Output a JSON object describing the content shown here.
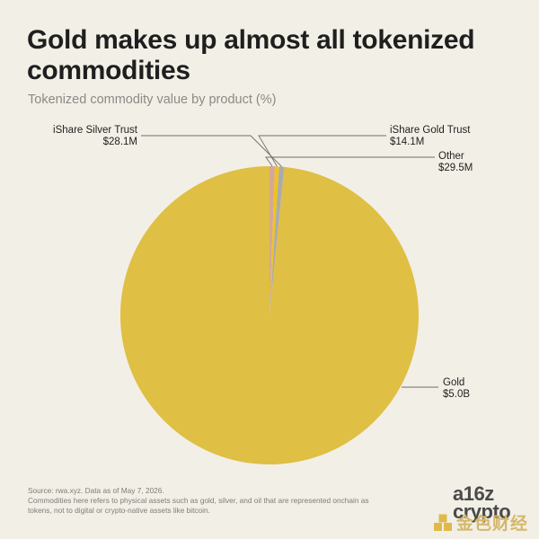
{
  "header": {
    "title": "Gold makes up almost all tokenized commodities",
    "subtitle": "Tokenized commodity value by product (%)"
  },
  "chart_data": {
    "type": "pie",
    "title": "Gold makes up almost all tokenized commodities",
    "subtitle": "Tokenized commodity value by product (%)",
    "start_angle": "top, clockwise",
    "slices": [
      {
        "name": "Other",
        "display_value": "$29.5M",
        "value": 29.5,
        "color": "#d4a896"
      },
      {
        "name": "iShare Gold Trust",
        "display_value": "$14.1M",
        "value": 14.1,
        "color": "#f2c21c"
      },
      {
        "name": "iShare Silver Trust",
        "display_value": "$28.1M",
        "value": 28.1,
        "color": "#a9acac"
      },
      {
        "name": "Gold",
        "display_value": "$5.0B",
        "value": 5000,
        "color": "#dfbf44"
      }
    ]
  },
  "footnote": {
    "source": "Source: rwa.xyz. Data as of May 7, 2026.",
    "note_line1": "Commodities here refers to physical assets such as gold, silver, and oil that are represented onchain as",
    "note_line2": "tokens, not to digital or crypto-native assets like bitcoin."
  },
  "logo": {
    "text": "a16z crypto",
    "watermark": "金色财经"
  }
}
